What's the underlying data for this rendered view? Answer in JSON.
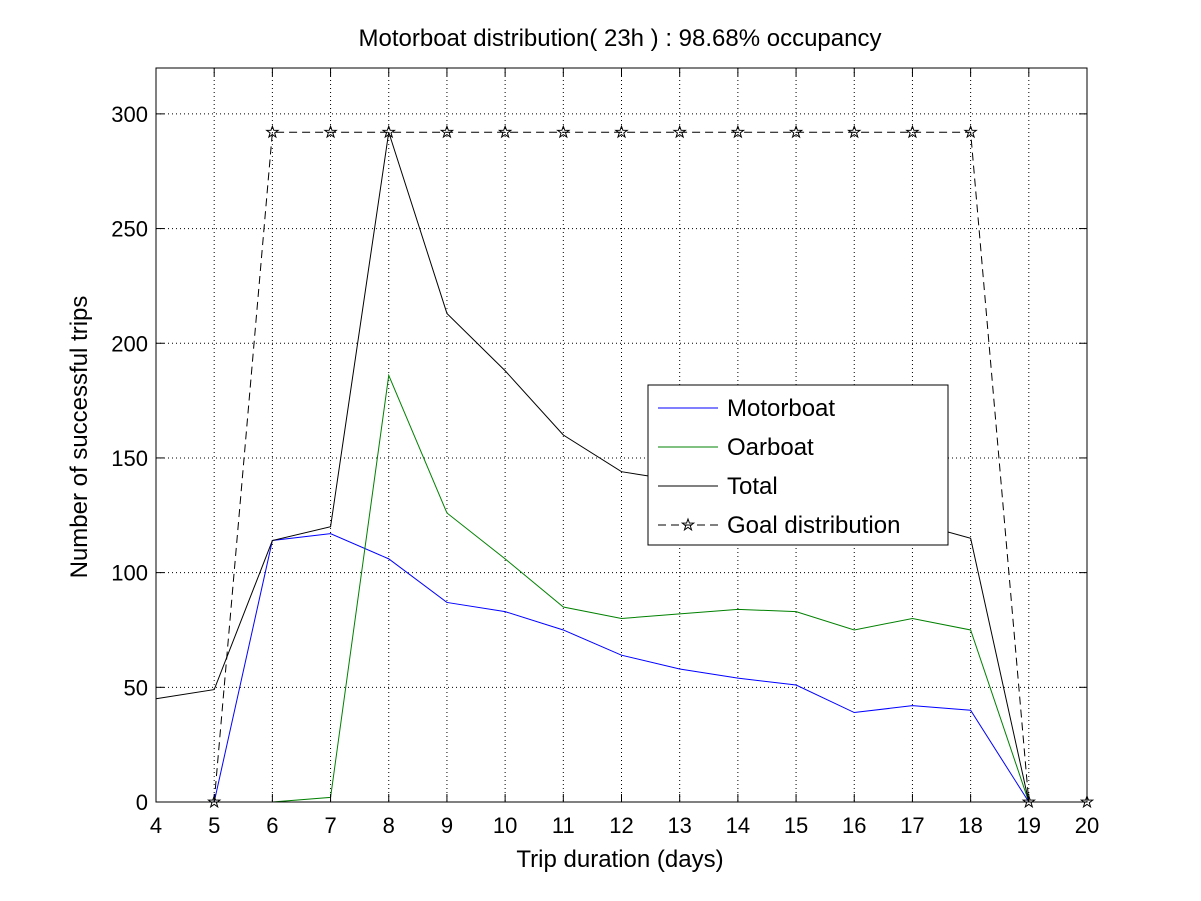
{
  "chart_data": {
    "type": "line",
    "title": "Motorboat distribution( 23h ) : 98.68% occupancy",
    "xlabel": "Trip duration (days)",
    "ylabel": "Number of successful trips",
    "xlim": [
      4,
      20
    ],
    "ylim": [
      0,
      320
    ],
    "xticks": [
      4,
      5,
      6,
      7,
      8,
      9,
      10,
      11,
      12,
      13,
      14,
      15,
      16,
      17,
      18,
      19,
      20
    ],
    "xtick_labels": [
      "4",
      "5",
      "6",
      "7",
      "8",
      "9",
      "10",
      "11",
      "12",
      "13",
      "14",
      "15",
      "16",
      "17",
      "18",
      "19",
      "20"
    ],
    "yticks": [
      0,
      50,
      100,
      150,
      200,
      250,
      300
    ],
    "ytick_labels": [
      "0",
      "50",
      "100",
      "150",
      "200",
      "250",
      "300"
    ],
    "grid": true,
    "legend_position": "center-right",
    "series": [
      {
        "name": "Motorboat",
        "color": "#0000ff",
        "style": "solid",
        "marker": "none",
        "x": [
          5,
          6,
          7,
          8,
          9,
          10,
          11,
          12,
          13,
          14,
          15,
          16,
          17,
          18,
          19
        ],
        "y": [
          0,
          114,
          117,
          106,
          87,
          83,
          75,
          64,
          58,
          54,
          51,
          39,
          42,
          40,
          0
        ]
      },
      {
        "name": "Oarboat",
        "color": "#008000",
        "style": "solid",
        "marker": "none",
        "x": [
          4,
          5,
          6,
          7,
          8,
          9,
          10,
          11,
          12,
          13,
          14,
          15,
          16,
          17,
          18,
          19
        ],
        "y": [
          0,
          0,
          0,
          2,
          186,
          126,
          106,
          85,
          80,
          82,
          84,
          83,
          75,
          80,
          75,
          0
        ]
      },
      {
        "name": "Total",
        "color": "#000000",
        "style": "solid",
        "marker": "none",
        "x": [
          4,
          5,
          6,
          7,
          8,
          9,
          10,
          11,
          12,
          13,
          14,
          15,
          16,
          17,
          18,
          19
        ],
        "y": [
          45,
          49,
          114,
          120,
          292,
          213,
          188,
          160,
          144,
          140,
          138,
          134,
          114,
          122,
          115,
          0
        ]
      },
      {
        "name": "Goal distribution",
        "color": "#000000",
        "style": "dashed",
        "marker": "star",
        "x": [
          5,
          6,
          7,
          8,
          9,
          10,
          11,
          12,
          13,
          14,
          15,
          16,
          17,
          18,
          19,
          20
        ],
        "y": [
          0,
          292,
          292,
          292,
          292,
          292,
          292,
          292,
          292,
          292,
          292,
          292,
          292,
          292,
          0,
          0
        ]
      }
    ]
  }
}
